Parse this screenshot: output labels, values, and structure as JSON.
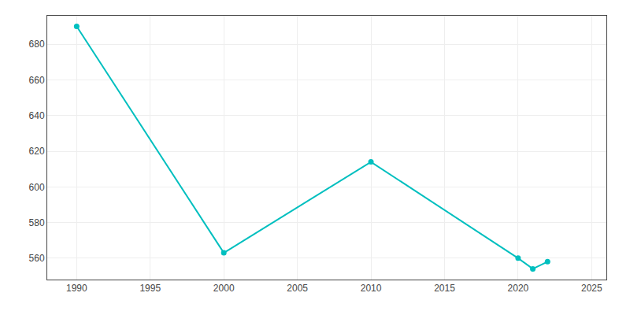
{
  "chart_data": {
    "type": "line",
    "x": [
      1990,
      2000,
      2010,
      2020,
      2021,
      2022
    ],
    "values": [
      690,
      563,
      614,
      560,
      554,
      558
    ],
    "color": "#00BFBF",
    "marker": "circle",
    "xlim": [
      1988,
      2026
    ],
    "ylim": [
      548,
      696
    ],
    "xticks": [
      1990,
      1995,
      2000,
      2005,
      2010,
      2015,
      2020,
      2025
    ],
    "yticks": [
      560,
      580,
      600,
      620,
      640,
      660,
      680
    ],
    "grid": true
  }
}
